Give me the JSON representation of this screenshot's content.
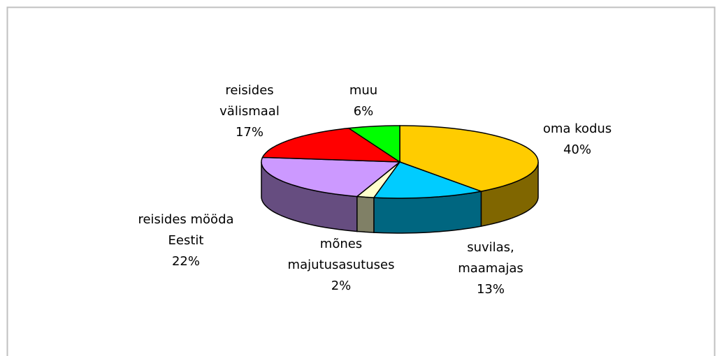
{
  "chart_data": {
    "type": "pie",
    "categories": [
      "oma kodus",
      "suvilas, maamajas",
      "mõnes majutusasutuses",
      "reisides mööda Eestit",
      "reisides välismaal",
      "muu"
    ],
    "values": [
      40,
      13,
      2,
      22,
      17,
      6
    ],
    "value_labels": [
      "40%",
      "13%",
      "2%",
      "22%",
      "17%",
      "6%"
    ],
    "colors": [
      "#ffcc00",
      "#00ccff",
      "#ffffcc",
      "#cc99ff",
      "#ff0000",
      "#00ff00"
    ]
  }
}
